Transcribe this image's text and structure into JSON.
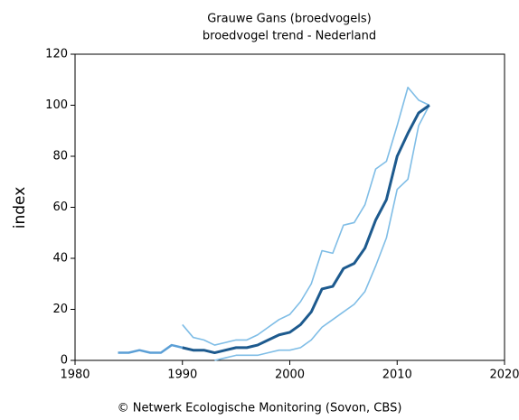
{
  "chart_data": {
    "type": "line",
    "title": "Grauwe Gans (broedvogels)",
    "subtitle": "broedvogel trend - Nederland",
    "y_label": "index",
    "source": "© Netwerk Ecologische Monitoring (Sovon, CBS)",
    "x": [
      1984,
      1985,
      1986,
      1987,
      1988,
      1989,
      1990,
      1991,
      1992,
      1993,
      1994,
      1995,
      1996,
      1997,
      1998,
      1999,
      2000,
      2001,
      2002,
      2003,
      2004,
      2005,
      2006,
      2007,
      2008,
      2009,
      2010,
      2011,
      2012,
      2013
    ],
    "series": [
      {
        "color": "#5b9fd6",
        "width": 2.5,
        "values": [
          3,
          3,
          4,
          3,
          3,
          6,
          5,
          null,
          null,
          null,
          null,
          null,
          null,
          null,
          null,
          null,
          null,
          null,
          null,
          null,
          null,
          null,
          null,
          null,
          null,
          null,
          null,
          null,
          null,
          null
        ]
      },
      {
        "color": "#7fbde6",
        "width": 1.6,
        "values": [
          null,
          null,
          null,
          null,
          null,
          null,
          14,
          9,
          8,
          6,
          7,
          8,
          8,
          10,
          13,
          16,
          18,
          23,
          30,
          43,
          42,
          53,
          54,
          61,
          75,
          78,
          92,
          107,
          102,
          100
        ]
      },
      {
        "color": "#7fbde6",
        "width": 1.6,
        "values": [
          null,
          null,
          null,
          null,
          null,
          null,
          null,
          null,
          null,
          0,
          1,
          2,
          2,
          2,
          3,
          4,
          4,
          5,
          8,
          13,
          16,
          19,
          22,
          27,
          37,
          48,
          67,
          71,
          92,
          100
        ]
      },
      {
        "color": "#1d5a8e",
        "width": 3,
        "values": [
          null,
          null,
          null,
          null,
          null,
          null,
          5,
          4,
          4,
          3,
          4,
          5,
          5,
          6,
          8,
          10,
          11,
          14,
          19,
          28,
          29,
          36,
          38,
          44,
          55,
          63,
          80,
          89,
          97,
          100
        ]
      }
    ],
    "xlim": [
      1980,
      2020
    ],
    "xticks": [
      1980,
      1990,
      2000,
      2010,
      2020
    ],
    "ylim": [
      0,
      120
    ],
    "yticks": [
      0,
      20,
      40,
      60,
      80,
      100,
      120
    ]
  }
}
